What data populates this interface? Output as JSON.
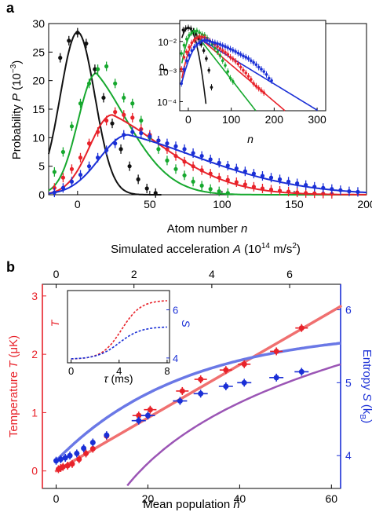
{
  "colors": {
    "black": "#111111",
    "green": "#16a82e",
    "red": "#e8222a",
    "blue": "#1a2fd6",
    "fit_red": "#f07070",
    "fit_blue": "#6a78e6",
    "fit_purple": "#9b55b5"
  },
  "chart_data": [
    {
      "panel": "a",
      "type": "line",
      "xlabel": "Atom number n",
      "ylabel": "Probability P (10⁻³)",
      "xlim": [
        -20,
        200
      ],
      "ylim": [
        0,
        30
      ],
      "x_ticks": [
        0,
        50,
        100,
        150,
        200
      ],
      "y_ticks": [
        0,
        5,
        10,
        15,
        20,
        25,
        30
      ],
      "grid": false,
      "series": [
        {
          "color": "black",
          "fit_peak": [
            0,
            28.5
          ],
          "fit_sigma": 15,
          "points": [
            [
              -12,
              24
            ],
            [
              -6,
              27
            ],
            [
              0,
              28.4
            ],
            [
              6,
              26.5
            ],
            [
              12,
              22
            ],
            [
              18,
              17
            ],
            [
              24,
              12.5
            ],
            [
              30,
              8
            ],
            [
              36,
              5
            ],
            [
              42,
              2.7
            ],
            [
              48,
              1.1
            ],
            [
              54,
              0.3
            ]
          ]
        },
        {
          "color": "green",
          "fit_peak": [
            13,
            21.3
          ],
          "points": [
            [
              -16,
              4
            ],
            [
              -10,
              7.5
            ],
            [
              -4,
              12
            ],
            [
              2,
              16
            ],
            [
              8,
              19.5
            ],
            [
              14,
              22
            ],
            [
              20,
              22.5
            ],
            [
              26,
              19.5
            ],
            [
              32,
              17
            ],
            [
              38,
              16
            ],
            [
              44,
              13
            ],
            [
              50,
              10
            ],
            [
              56,
              8
            ],
            [
              62,
              6
            ],
            [
              68,
              4.5
            ],
            [
              74,
              3.4
            ],
            [
              80,
              2.3
            ],
            [
              86,
              1.6
            ],
            [
              92,
              1
            ],
            [
              98,
              0.6
            ],
            [
              104,
              0.3
            ]
          ]
        },
        {
          "color": "red",
          "fit_peak": [
            24,
            14
          ],
          "points": [
            [
              -16,
              1.2
            ],
            [
              -10,
              3
            ],
            [
              -4,
              4.5
            ],
            [
              2,
              6.5
            ],
            [
              8,
              9
            ],
            [
              14,
              11
            ],
            [
              20,
              13
            ],
            [
              26,
              14.5
            ],
            [
              32,
              14
            ],
            [
              38,
              13.5
            ],
            [
              44,
              11.5
            ],
            [
              50,
              10.5
            ],
            [
              56,
              9.5
            ],
            [
              62,
              8
            ],
            [
              68,
              6.8
            ],
            [
              74,
              5.8
            ],
            [
              80,
              5
            ],
            [
              86,
              4.3
            ],
            [
              92,
              3.7
            ],
            [
              98,
              3
            ],
            [
              104,
              2.6
            ],
            [
              110,
              2.2
            ],
            [
              116,
              1.8
            ],
            [
              122,
              1.4
            ],
            [
              128,
              1.1
            ],
            [
              134,
              0.9
            ],
            [
              140,
              0.7
            ],
            [
              146,
              0.55
            ],
            [
              152,
              0.4
            ],
            [
              158,
              0.3
            ],
            [
              164,
              0.25
            ],
            [
              170,
              0.2
            ],
            [
              176,
              0.15
            ]
          ]
        },
        {
          "color": "blue",
          "fit_peak": [
            35,
            10.5
          ],
          "points": [
            [
              -16,
              0.4
            ],
            [
              -10,
              1.2
            ],
            [
              -4,
              2.3
            ],
            [
              2,
              3.5
            ],
            [
              8,
              5
            ],
            [
              14,
              6.5
            ],
            [
              20,
              7.8
            ],
            [
              26,
              9
            ],
            [
              32,
              10.5
            ],
            [
              38,
              11
            ],
            [
              44,
              10.8
            ],
            [
              50,
              10.2
            ],
            [
              56,
              9.5
            ],
            [
              62,
              9
            ],
            [
              68,
              8.5
            ],
            [
              74,
              8
            ],
            [
              80,
              7.3
            ],
            [
              86,
              6.8
            ],
            [
              92,
              6.2
            ],
            [
              98,
              5.6
            ],
            [
              104,
              5.1
            ],
            [
              110,
              4.6
            ],
            [
              116,
              4.1
            ],
            [
              122,
              3.7
            ],
            [
              128,
              3.3
            ],
            [
              134,
              3
            ],
            [
              140,
              2.7
            ],
            [
              146,
              2.3
            ],
            [
              152,
              2
            ],
            [
              158,
              1.7
            ],
            [
              164,
              1.4
            ],
            [
              170,
              1.2
            ],
            [
              176,
              1
            ],
            [
              182,
              0.8
            ],
            [
              188,
              0.6
            ],
            [
              194,
              0.5
            ]
          ]
        }
      ],
      "inset": {
        "type": "line",
        "log_y": true,
        "xlabel": "n",
        "ylabel": "P",
        "xlim": [
          -20,
          320
        ],
        "ylim": [
          5e-05,
          0.05
        ],
        "x_ticks": [
          0,
          100,
          200,
          300
        ],
        "y_tick_labels": [
          "10⁻⁴",
          "10⁻³",
          "10⁻²"
        ],
        "y_tick_values": [
          0.0001,
          0.001,
          0.01
        ]
      }
    },
    {
      "panel": "b",
      "type": "scatter",
      "xlabel": "Mean population n̄",
      "top_xlabel": "Simulated acceleration A (10¹⁴ m/s²)",
      "ylabel_left": "Temperature T (μK)",
      "ylabel_right": "Entropy S (k_B)",
      "xlim": [
        -3,
        62
      ],
      "ylim_left": [
        -0.3,
        3.2
      ],
      "ylim_right": [
        3.55,
        6.35
      ],
      "top_xlim": [
        0,
        7.2
      ],
      "x_ticks": [
        0,
        20,
        40,
        60
      ],
      "top_ticks": [
        0,
        2,
        4,
        6
      ],
      "left_ticks": [
        0,
        1,
        2,
        3
      ],
      "right_ticks": [
        4,
        5,
        6
      ],
      "temperature_points": [
        [
          0.5,
          0.03
        ],
        [
          1,
          0.05
        ],
        [
          1.5,
          0.07
        ],
        [
          2.5,
          0.09
        ],
        [
          3.5,
          0.12
        ],
        [
          5,
          0.2
        ],
        [
          6.5,
          0.3
        ],
        [
          8,
          0.38
        ],
        [
          11,
          0.6
        ],
        [
          18,
          0.95
        ],
        [
          20.5,
          1.05
        ],
        [
          27.5,
          1.37
        ],
        [
          31.5,
          1.57
        ],
        [
          37,
          1.73
        ],
        [
          41,
          1.83
        ],
        [
          48,
          2.05
        ],
        [
          53.5,
          2.45
        ]
      ],
      "temperature_fit": {
        "slope": 0.0455,
        "intercept": 0.0
      },
      "entropy_points": [
        [
          0,
          3.93
        ],
        [
          1,
          3.95
        ],
        [
          2,
          3.97
        ],
        [
          3,
          4.0
        ],
        [
          4.5,
          4.03
        ],
        [
          6,
          4.1
        ],
        [
          8,
          4.18
        ],
        [
          11,
          4.28
        ],
        [
          18,
          4.48
        ],
        [
          20,
          4.55
        ],
        [
          27,
          4.75
        ],
        [
          31.5,
          4.85
        ],
        [
          37,
          4.95
        ],
        [
          41,
          5.0
        ],
        [
          48,
          5.07
        ],
        [
          53.5,
          5.15
        ]
      ],
      "entropy_fit": "S = 5.74 - 1.81 * exp(-x / 28)",
      "purple_fit": "S = 1.2 * ln(x) + 0.3 for x > 13",
      "inset": {
        "xlabel": "τ (ms)",
        "left_label": "T",
        "right_label": "S",
        "xlim": [
          0,
          8
        ],
        "x_ticks": [
          0,
          4,
          8
        ],
        "right_ticks": [
          4,
          6
        ]
      }
    }
  ],
  "labels": {
    "panel_a": "a",
    "panel_b": "b",
    "a_xlabel_text": "Atom number ",
    "a_xlabel_var": "n",
    "a_ylabel_text": "Probability ",
    "a_ylabel_var": "P",
    "a_ylabel_unit": " (10",
    "a_ylabel_exp": "−3",
    "a_ylabel_close": ")",
    "inset_a_xlabel": "n",
    "inset_a_ylabel": "P",
    "b_top_text": "Simulated acceleration ",
    "b_top_var": "A",
    "b_top_unit": " (10",
    "b_top_exp1": "14",
    "b_top_unit2": " m/s",
    "b_top_exp2": "2",
    "b_top_close": ")",
    "b_xlabel_text": "Mean population  ",
    "b_xlabel_var": "n̄",
    "b_left_text": "Temperature ",
    "b_left_var": "T",
    "b_left_unit": " (μK)",
    "b_right_text": "Entropy ",
    "b_right_var": "S",
    "b_right_unit": " (k",
    "b_right_sub": "B",
    "b_right_close": ")",
    "inset_b_xlabel_var": "τ",
    "inset_b_xlabel_unit": " (ms)",
    "inset_b_T": "T",
    "inset_b_S": "S"
  }
}
